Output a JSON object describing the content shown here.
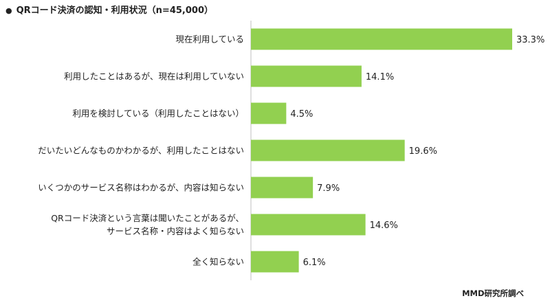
{
  "title": {
    "bullet": "●",
    "text": "QRコード決済の認知・利用状況（n=45,000）"
  },
  "source": "MMD研究所調べ",
  "colors": {
    "bar": "#92d050",
    "axis": "#bfbfbf",
    "text": "#222222"
  },
  "chart_data": {
    "type": "bar",
    "orientation": "horizontal",
    "title": "QRコード決済の認知・利用状況（n=45,000）",
    "categories": [
      [
        "現在利用している"
      ],
      [
        "利用したことはあるが、現在は利用していない"
      ],
      [
        "利用を検討している（利用したことはない）"
      ],
      [
        "だいたいどんなものかわかるが、利用したことはない"
      ],
      [
        "いくつかのサービス名称はわかるが、内容は知らない"
      ],
      [
        "QRコード決済という言葉は聞いたことがあるが、",
        "サービス名称・内容はよく知らない"
      ],
      [
        "全く知らない"
      ]
    ],
    "values": [
      33.3,
      14.1,
      4.5,
      19.6,
      7.9,
      14.6,
      6.1
    ],
    "value_labels": [
      "33.3%",
      "14.1%",
      "4.5%",
      "19.6%",
      "7.9%",
      "14.6%",
      "6.1%"
    ],
    "unit": "%",
    "xlim": [
      0,
      33.3
    ],
    "grid": false,
    "legend": "none"
  }
}
